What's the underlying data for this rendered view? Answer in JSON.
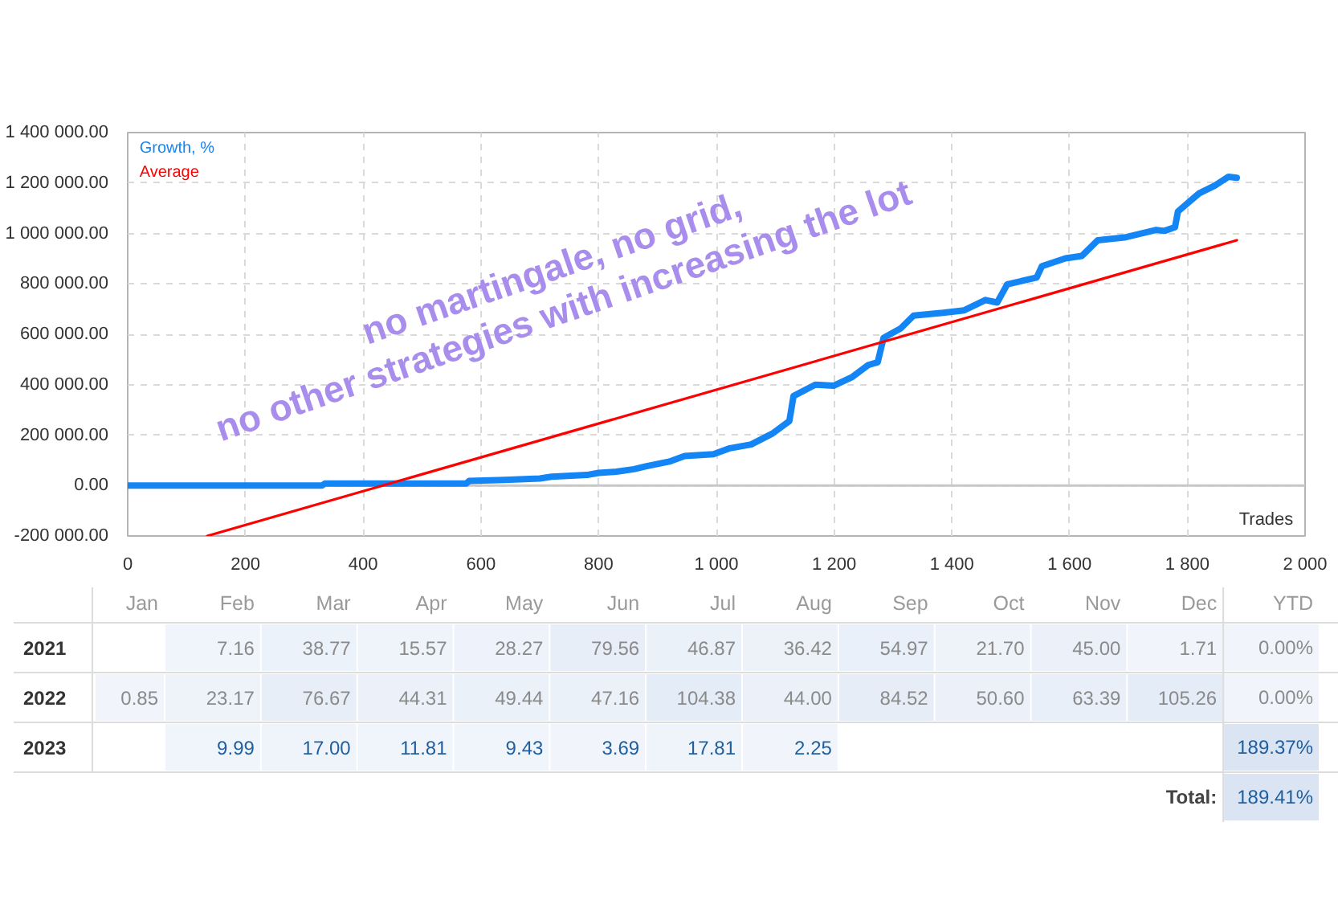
{
  "chart_data": [
    {
      "type": "line",
      "xlabel": "Trades",
      "xlim": [
        0,
        2000
      ],
      "ylim": [
        -200000,
        1400000
      ],
      "xticks": [
        0,
        200,
        400,
        600,
        800,
        {
          "value": 1000,
          "label": "1 000"
        },
        {
          "value": 1200,
          "label": "1 200"
        },
        {
          "value": 1400,
          "label": "1 400"
        },
        {
          "value": 1600,
          "label": "1 600"
        },
        {
          "value": 1800,
          "label": "1 800"
        },
        {
          "value": 2000,
          "label": "2 000"
        }
      ],
      "yticks": [
        {
          "value": -200000,
          "label": "-200 000.00"
        },
        {
          "value": 0,
          "label": "0.00"
        },
        {
          "value": 200000,
          "label": "200 000.00"
        },
        {
          "value": 400000,
          "label": "400 000.00"
        },
        {
          "value": 600000,
          "label": "600 000.00"
        },
        {
          "value": 800000,
          "label": "800 000.00"
        },
        {
          "value": 1000000,
          "label": "1 000 000.00"
        },
        {
          "value": 1200000,
          "label": "1 200 000.00"
        },
        {
          "value": 1400000,
          "label": "1 400 000.00"
        }
      ],
      "grid": true,
      "legend": "top left",
      "ref_lines": [
        {
          "axis": "y",
          "value": 0,
          "color": "#c8c8c8",
          "line_style": "solid"
        }
      ],
      "annotations": [
        "no martingale, no grid,",
        "no other strategies with increasing the lot"
      ],
      "series": [
        {
          "name": "Growth, %",
          "color": "#1485f5",
          "x": [
            0,
            330,
            335,
            575,
            580,
            640,
            700,
            720,
            780,
            800,
            830,
            860,
            880,
            920,
            946,
            995,
            1023,
            1059,
            1095,
            1124,
            1131,
            1168,
            1199,
            1231,
            1258,
            1274,
            1284,
            1313,
            1335,
            1385,
            1421,
            1457,
            1477,
            1494,
            1544,
            1553,
            1593,
            1621,
            1648,
            1693,
            1747,
            1761,
            1779,
            1784,
            1820,
            1847,
            1870,
            1884
          ],
          "values": [
            0,
            0,
            8000,
            8000,
            18000,
            22000,
            28000,
            35000,
            42000,
            50000,
            55000,
            65000,
            76000,
            95000,
            117000,
            124000,
            148000,
            163000,
            206000,
            256000,
            355000,
            400000,
            396000,
            431000,
            478000,
            489000,
            586000,
            623000,
            674000,
            685000,
            695000,
            736000,
            726000,
            798000,
            825000,
            870000,
            901000,
            911000,
            973000,
            984000,
            1014000,
            1010000,
            1025000,
            1087000,
            1159000,
            1190000,
            1225000,
            1221000
          ]
        },
        {
          "name": "Average",
          "color": "#ff0000",
          "x": [
            135,
            1884
          ],
          "values": [
            -200000,
            973000
          ]
        }
      ]
    },
    {
      "type": "heatmap",
      "categories": [
        "Jan",
        "Feb",
        "Mar",
        "Apr",
        "May",
        "Jun",
        "Jul",
        "Aug",
        "Sep",
        "Oct",
        "Nov",
        "Dec",
        "YTD"
      ],
      "y_categories": [
        "2021",
        "2022",
        "2023",
        null
      ],
      "cells": [
        [
          null,
          7.16,
          38.77,
          15.57,
          28.27,
          79.56,
          46.87,
          36.42,
          54.97,
          21.7,
          45.0,
          1.71,
          0.0
        ],
        [
          0.85,
          23.17,
          76.67,
          44.31,
          49.44,
          47.16,
          104.38,
          44.0,
          84.52,
          50.6,
          63.39,
          105.26,
          0.0
        ],
        [
          null,
          9.99,
          17.0,
          11.81,
          9.43,
          3.69,
          17.81,
          2.25,
          null,
          null,
          null,
          null,
          189.37
        ],
        [
          null,
          null,
          null,
          null,
          null,
          null,
          null,
          null,
          null,
          null,
          null,
          null,
          189.41
        ]
      ],
      "cell_labels": [
        [
          null,
          "7.16",
          "38.77",
          "15.57",
          "28.27",
          "79.56",
          "46.87",
          "36.42",
          "54.97",
          "21.70",
          "45.00",
          "1.71",
          "0.00%"
        ],
        [
          "0.85",
          "23.17",
          "76.67",
          "44.31",
          "49.44",
          "47.16",
          "104.38",
          "44.00",
          "84.52",
          "50.60",
          "63.39",
          "105.26",
          "0.00%"
        ],
        [
          null,
          "9.99",
          "17.00",
          "11.81",
          "9.43",
          "3.69",
          "17.81",
          "2.25",
          null,
          null,
          null,
          null,
          "189.37%"
        ],
        [
          null,
          null,
          null,
          null,
          null,
          null,
          null,
          null,
          null,
          null,
          null,
          "Total:",
          "189.41%"
        ]
      ]
    }
  ]
}
